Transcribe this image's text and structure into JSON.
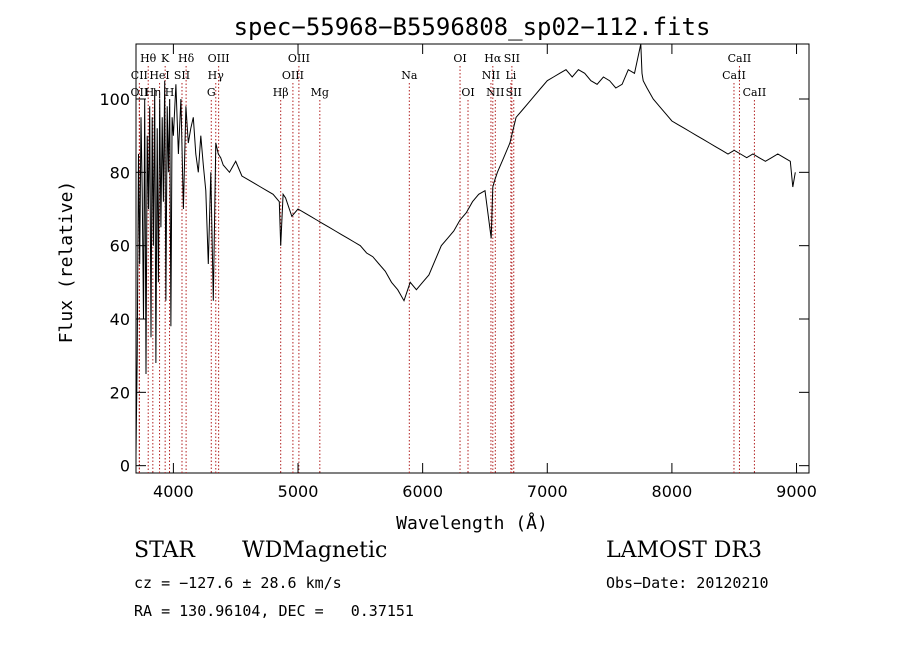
{
  "chart_data": {
    "type": "line",
    "title": "spec−55968−B5596808_sp02−112.fits",
    "xlabel": "Wavelength (Å)",
    "ylabel": "Flux (relative)",
    "xlim": [
      3700,
      9100
    ],
    "ylim": [
      -2,
      115
    ],
    "xticks": [
      4000,
      5000,
      6000,
      7000,
      8000,
      9000
    ],
    "yticks": [
      0,
      20,
      40,
      60,
      80,
      100
    ],
    "line_color": "#000000",
    "marker_color": "#b22222",
    "series": [
      {
        "name": "flux",
        "x": [
          3700,
          3710,
          3720,
          3730,
          3740,
          3750,
          3760,
          3770,
          3780,
          3790,
          3800,
          3810,
          3820,
          3830,
          3840,
          3850,
          3860,
          3870,
          3880,
          3890,
          3900,
          3910,
          3920,
          3930,
          3940,
          3950,
          3960,
          3970,
          3980,
          3990,
          4000,
          4020,
          4040,
          4060,
          4080,
          4100,
          4120,
          4140,
          4160,
          4180,
          4200,
          4220,
          4240,
          4260,
          4280,
          4300,
          4320,
          4340,
          4360,
          4380,
          4400,
          4450,
          4500,
          4550,
          4600,
          4650,
          4700,
          4750,
          4800,
          4850,
          4861,
          4880,
          4900,
          4950,
          5000,
          5050,
          5100,
          5150,
          5200,
          5250,
          5300,
          5350,
          5400,
          5450,
          5500,
          5550,
          5600,
          5650,
          5700,
          5750,
          5800,
          5850,
          5900,
          5950,
          6000,
          6050,
          6100,
          6150,
          6200,
          6250,
          6300,
          6350,
          6400,
          6450,
          6500,
          6550,
          6563,
          6580,
          6600,
          6650,
          6700,
          6750,
          6800,
          6850,
          6900,
          6950,
          7000,
          7050,
          7100,
          7150,
          7200,
          7250,
          7300,
          7350,
          7400,
          7450,
          7500,
          7550,
          7600,
          7650,
          7700,
          7750,
          7760,
          7770,
          7800,
          7850,
          7900,
          7950,
          8000,
          8050,
          8100,
          8150,
          8200,
          8250,
          8300,
          8350,
          8400,
          8450,
          8500,
          8550,
          8600,
          8650,
          8700,
          8750,
          8800,
          8850,
          8900,
          8950,
          8970,
          8990
        ],
        "y": [
          3,
          30,
          85,
          55,
          95,
          75,
          40,
          100,
          25,
          90,
          70,
          98,
          35,
          95,
          60,
          103,
          28,
          92,
          50,
          100,
          65,
          95,
          72,
          105,
          45,
          98,
          80,
          100,
          38,
          95,
          90,
          104,
          85,
          100,
          70,
          98,
          88,
          92,
          95,
          85,
          80,
          90,
          82,
          75,
          55,
          80,
          45,
          88,
          85,
          84,
          82,
          80,
          83,
          79,
          78,
          77,
          76,
          75,
          74,
          72,
          60,
          74,
          73,
          68,
          70,
          69,
          68,
          67,
          66,
          65,
          64,
          63,
          62,
          61,
          60,
          58,
          57,
          55,
          53,
          50,
          48,
          45,
          50,
          48,
          50,
          52,
          56,
          60,
          62,
          64,
          67,
          69,
          72,
          74,
          75,
          62,
          76,
          78,
          80,
          84,
          88,
          95,
          97,
          99,
          101,
          103,
          105,
          106,
          107,
          108,
          106,
          108,
          107,
          105,
          104,
          106,
          105,
          103,
          104,
          108,
          107,
          115,
          107,
          105,
          103,
          100,
          98,
          96,
          94,
          93,
          92,
          91,
          90,
          89,
          88,
          87,
          86,
          85,
          86,
          85,
          84,
          85,
          84,
          83,
          84,
          85,
          84,
          83,
          76,
          80
        ]
      }
    ],
    "line_markers": [
      {
        "label": "Hθ",
        "wavelength": 3798,
        "row": 1
      },
      {
        "label": "CII",
        "wavelength": 3727,
        "row": 2
      },
      {
        "label": "OII",
        "wavelength": 3727,
        "row": 3
      },
      {
        "label": "K",
        "wavelength": 3934,
        "row": 1
      },
      {
        "label": "HeI",
        "wavelength": 3889,
        "row": 2
      },
      {
        "label": "Hη",
        "wavelength": 3835,
        "row": 3
      },
      {
        "label": "SII",
        "wavelength": 4069,
        "row": 2
      },
      {
        "label": "H",
        "wavelength": 3969,
        "row": 3
      },
      {
        "label": "Hδ",
        "wavelength": 4102,
        "row": 1
      },
      {
        "label": "OIII",
        "wavelength": 4363,
        "row": 1
      },
      {
        "label": "Hγ",
        "wavelength": 4340,
        "row": 2
      },
      {
        "label": "G",
        "wavelength": 4304,
        "row": 3
      },
      {
        "label": "OIII",
        "wavelength": 5007,
        "row": 1
      },
      {
        "label": "OIII",
        "wavelength": 4959,
        "row": 2
      },
      {
        "label": "Hβ",
        "wavelength": 4861,
        "row": 3
      },
      {
        "label": "Mg",
        "wavelength": 5175,
        "row": 3
      },
      {
        "label": "Na",
        "wavelength": 5893,
        "row": 2
      },
      {
        "label": "OI",
        "wavelength": 6300,
        "row": 1
      },
      {
        "label": "OI",
        "wavelength": 6364,
        "row": 3
      },
      {
        "label": "Hα",
        "wavelength": 6563,
        "row": 1
      },
      {
        "label": "NII",
        "wavelength": 6548,
        "row": 2
      },
      {
        "label": "NII",
        "wavelength": 6583,
        "row": 3
      },
      {
        "label": "SII",
        "wavelength": 6716,
        "row": 1
      },
      {
        "label": "Li",
        "wavelength": 6708,
        "row": 2
      },
      {
        "label": "SII",
        "wavelength": 6731,
        "row": 3
      },
      {
        "label": "CaII",
        "wavelength": 8542,
        "row": 1
      },
      {
        "label": "CaII",
        "wavelength": 8498,
        "row": 2
      },
      {
        "label": "CaII",
        "wavelength": 8662,
        "row": 3
      }
    ]
  },
  "info": {
    "object_class": "STAR",
    "subclass": "WDMagnetic",
    "survey": "LAMOST DR3",
    "redshift": "cz = −127.6 ± 28.6 km/s",
    "obs_date": "Obs−Date: 20120210",
    "coordinates": "RA = 130.96104, DEC =   0.37151"
  }
}
